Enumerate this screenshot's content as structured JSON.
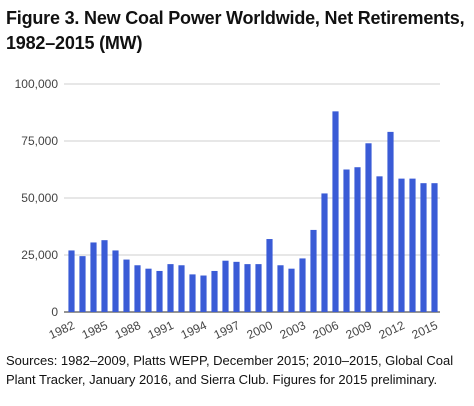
{
  "figure": {
    "title": "Figure 3. New Coal Power Worldwide, Net Retirements, 1982–2015 (MW)",
    "source": "Sources: 1982–2009, Platts WEPP, December 2015; 2010–2015, Global Coal Plant Tracker, January 2016, and Sierra Club. Figures for 2015 preliminary."
  },
  "chart_data": {
    "type": "bar",
    "title": "Figure 3. New Coal Power Worldwide, Net Retirements, 1982–2015 (MW)",
    "xlabel": "",
    "ylabel": "",
    "categories": [
      "1982",
      "1983",
      "1984",
      "1985",
      "1986",
      "1987",
      "1988",
      "1989",
      "1990",
      "1991",
      "1992",
      "1993",
      "1994",
      "1995",
      "1996",
      "1997",
      "1998",
      "1999",
      "2000",
      "2001",
      "2002",
      "2003",
      "2004",
      "2005",
      "2006",
      "2007",
      "2008",
      "2009",
      "2010",
      "2011",
      "2012",
      "2013",
      "2014",
      "2015"
    ],
    "values": [
      27000,
      24500,
      30500,
      31500,
      27000,
      23000,
      20500,
      19000,
      18000,
      21000,
      20500,
      16500,
      16000,
      18000,
      22500,
      22000,
      21000,
      21000,
      32000,
      20500,
      19000,
      23500,
      36000,
      52000,
      88000,
      62500,
      63500,
      74000,
      59500,
      79000,
      58500,
      58500,
      56500,
      56500
    ],
    "x_tick_labels": [
      "1982",
      "1985",
      "1988",
      "1991",
      "1994",
      "1997",
      "2000",
      "2003",
      "2006",
      "2009",
      "2012",
      "2015"
    ],
    "y_ticks": [
      0,
      25000,
      50000,
      75000,
      100000
    ],
    "y_tick_labels": [
      "0",
      "25,000",
      "50,000",
      "75,000",
      "100,000"
    ],
    "ylim": [
      0,
      100000
    ],
    "grid": true,
    "bar_color": "#3a5bd6"
  }
}
